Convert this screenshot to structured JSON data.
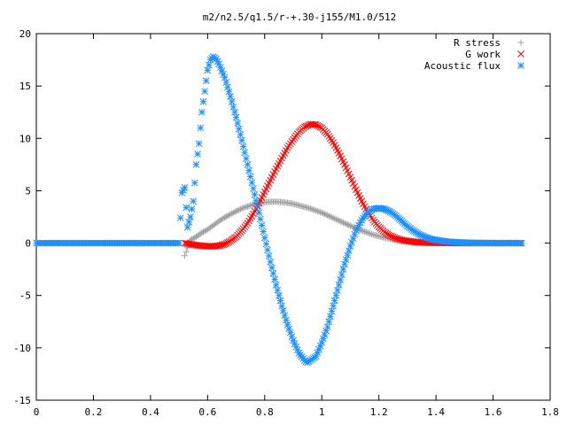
{
  "chart_data": {
    "type": "scatter",
    "title": "m2/n2.5/q1.5/r-+.30-j155/M1.0/512",
    "xlabel": "",
    "ylabel": "",
    "xlim": [
      0,
      1.8
    ],
    "ylim": [
      -15,
      20
    ],
    "xticks": [
      "0",
      "0.2",
      "0.4",
      "0.6",
      "0.8",
      "1",
      "1.2",
      "1.4",
      "1.6",
      "1.8"
    ],
    "yticks": [
      "-15",
      "-10",
      "-5",
      "0",
      "5",
      "10",
      "15",
      "20"
    ],
    "grid": false,
    "legend_position": "top-right",
    "series": [
      {
        "name": "R stress",
        "marker": "plus",
        "color": "#a0a0a0",
        "points": [
          [
            0.52,
            -1.2
          ],
          [
            0.54,
            0.3
          ],
          [
            0.56,
            0.6
          ],
          [
            0.58,
            1.0
          ],
          [
            0.6,
            1.3
          ],
          [
            0.62,
            1.7
          ],
          [
            0.64,
            2.1
          ],
          [
            0.66,
            2.45
          ],
          [
            0.68,
            2.75
          ],
          [
            0.7,
            3.05
          ],
          [
            0.72,
            3.3
          ],
          [
            0.74,
            3.5
          ],
          [
            0.76,
            3.7
          ],
          [
            0.78,
            3.8
          ],
          [
            0.8,
            3.9
          ],
          [
            0.82,
            3.95
          ],
          [
            0.84,
            3.95
          ],
          [
            0.86,
            3.92
          ],
          [
            0.88,
            3.85
          ],
          [
            0.9,
            3.75
          ],
          [
            0.92,
            3.6
          ],
          [
            0.94,
            3.45
          ],
          [
            0.96,
            3.3
          ],
          [
            0.98,
            3.1
          ],
          [
            1.0,
            2.9
          ],
          [
            1.02,
            2.65
          ],
          [
            1.04,
            2.4
          ],
          [
            1.06,
            2.15
          ],
          [
            1.08,
            1.9
          ],
          [
            1.1,
            1.65
          ],
          [
            1.12,
            1.4
          ],
          [
            1.14,
            1.2
          ],
          [
            1.16,
            1.0
          ],
          [
            1.18,
            0.8
          ],
          [
            1.2,
            0.65
          ],
          [
            1.22,
            0.5
          ],
          [
            1.24,
            0.4
          ],
          [
            1.26,
            0.3
          ],
          [
            1.28,
            0.22
          ],
          [
            1.3,
            0.15
          ],
          [
            1.32,
            0.1
          ],
          [
            1.34,
            0.07
          ],
          [
            1.36,
            0.04
          ],
          [
            1.4,
            0.02
          ],
          [
            1.45,
            0.01
          ],
          [
            1.5,
            0.0
          ],
          [
            1.6,
            0.0
          ],
          [
            1.7,
            0.0
          ]
        ]
      },
      {
        "name": "G work",
        "marker": "cross",
        "color": "#ff0000",
        "points": [
          [
            0.52,
            0.0
          ],
          [
            0.54,
            -0.1
          ],
          [
            0.56,
            -0.2
          ],
          [
            0.58,
            -0.25
          ],
          [
            0.6,
            -0.3
          ],
          [
            0.62,
            -0.3
          ],
          [
            0.64,
            -0.25
          ],
          [
            0.66,
            -0.1
          ],
          [
            0.68,
            0.2
          ],
          [
            0.7,
            0.6
          ],
          [
            0.72,
            1.2
          ],
          [
            0.74,
            1.9
          ],
          [
            0.76,
            2.8
          ],
          [
            0.78,
            3.8
          ],
          [
            0.8,
            4.9
          ],
          [
            0.82,
            6.0
          ],
          [
            0.84,
            7.1
          ],
          [
            0.86,
            8.1
          ],
          [
            0.88,
            9.1
          ],
          [
            0.9,
            9.9
          ],
          [
            0.92,
            10.6
          ],
          [
            0.94,
            11.1
          ],
          [
            0.96,
            11.35
          ],
          [
            0.98,
            11.3
          ],
          [
            1.0,
            11.0
          ],
          [
            1.02,
            10.4
          ],
          [
            1.04,
            9.6
          ],
          [
            1.06,
            8.6
          ],
          [
            1.08,
            7.5
          ],
          [
            1.1,
            6.3
          ],
          [
            1.12,
            5.1
          ],
          [
            1.14,
            4.0
          ],
          [
            1.16,
            3.0
          ],
          [
            1.18,
            2.2
          ],
          [
            1.2,
            1.55
          ],
          [
            1.22,
            1.05
          ],
          [
            1.24,
            0.7
          ],
          [
            1.26,
            0.45
          ],
          [
            1.28,
            0.3
          ],
          [
            1.3,
            0.2
          ],
          [
            1.33,
            0.1
          ],
          [
            1.36,
            0.05
          ],
          [
            1.4,
            0.02
          ],
          [
            1.45,
            0.01
          ],
          [
            1.5,
            0.0
          ],
          [
            1.6,
            0.0
          ],
          [
            1.7,
            0.0
          ]
        ]
      },
      {
        "name": "Acoustic flux",
        "marker": "star",
        "color": "#1e90ff",
        "points": [
          [
            0.0,
            0.0
          ],
          [
            0.05,
            0.0
          ],
          [
            0.1,
            0.0
          ],
          [
            0.15,
            0.0
          ],
          [
            0.2,
            0.0
          ],
          [
            0.25,
            0.0
          ],
          [
            0.3,
            0.0
          ],
          [
            0.35,
            0.0
          ],
          [
            0.4,
            0.0
          ],
          [
            0.45,
            0.0
          ],
          [
            0.5,
            0.0
          ],
          [
            0.51,
            4.8
          ],
          [
            0.52,
            5.3
          ],
          [
            0.53,
            1.5
          ],
          [
            0.54,
            2.5
          ],
          [
            0.55,
            4.0
          ],
          [
            0.56,
            7.5
          ],
          [
            0.57,
            9.5
          ],
          [
            0.58,
            12.5
          ],
          [
            0.59,
            14.5
          ],
          [
            0.6,
            16.5
          ],
          [
            0.61,
            17.5
          ],
          [
            0.62,
            17.8
          ],
          [
            0.63,
            17.6
          ],
          [
            0.64,
            17.1
          ],
          [
            0.66,
            15.8
          ],
          [
            0.68,
            14.0
          ],
          [
            0.7,
            12.0
          ],
          [
            0.72,
            9.8
          ],
          [
            0.74,
            7.5
          ],
          [
            0.76,
            5.2
          ],
          [
            0.78,
            2.9
          ],
          [
            0.8,
            0.5
          ],
          [
            0.82,
            -1.8
          ],
          [
            0.84,
            -4.0
          ],
          [
            0.86,
            -6.0
          ],
          [
            0.88,
            -7.8
          ],
          [
            0.9,
            -9.3
          ],
          [
            0.92,
            -10.5
          ],
          [
            0.94,
            -11.2
          ],
          [
            0.95,
            -11.4
          ],
          [
            0.96,
            -11.2
          ],
          [
            0.98,
            -10.8
          ],
          [
            1.0,
            -9.5
          ],
          [
            1.02,
            -8.0
          ],
          [
            1.04,
            -6.0
          ],
          [
            1.06,
            -4.0
          ],
          [
            1.08,
            -2.0
          ],
          [
            1.1,
            -0.3
          ],
          [
            1.12,
            1.2
          ],
          [
            1.14,
            2.2
          ],
          [
            1.16,
            2.9
          ],
          [
            1.18,
            3.25
          ],
          [
            1.2,
            3.35
          ],
          [
            1.22,
            3.25
          ],
          [
            1.24,
            3.0
          ],
          [
            1.26,
            2.6
          ],
          [
            1.28,
            2.1
          ],
          [
            1.3,
            1.6
          ],
          [
            1.32,
            1.2
          ],
          [
            1.34,
            0.85
          ],
          [
            1.36,
            0.6
          ],
          [
            1.38,
            0.4
          ],
          [
            1.4,
            0.3
          ],
          [
            1.42,
            0.2
          ],
          [
            1.45,
            0.12
          ],
          [
            1.5,
            0.05
          ],
          [
            1.55,
            0.02
          ],
          [
            1.6,
            0.0
          ],
          [
            1.65,
            0.0
          ],
          [
            1.7,
            0.0
          ]
        ]
      }
    ]
  }
}
